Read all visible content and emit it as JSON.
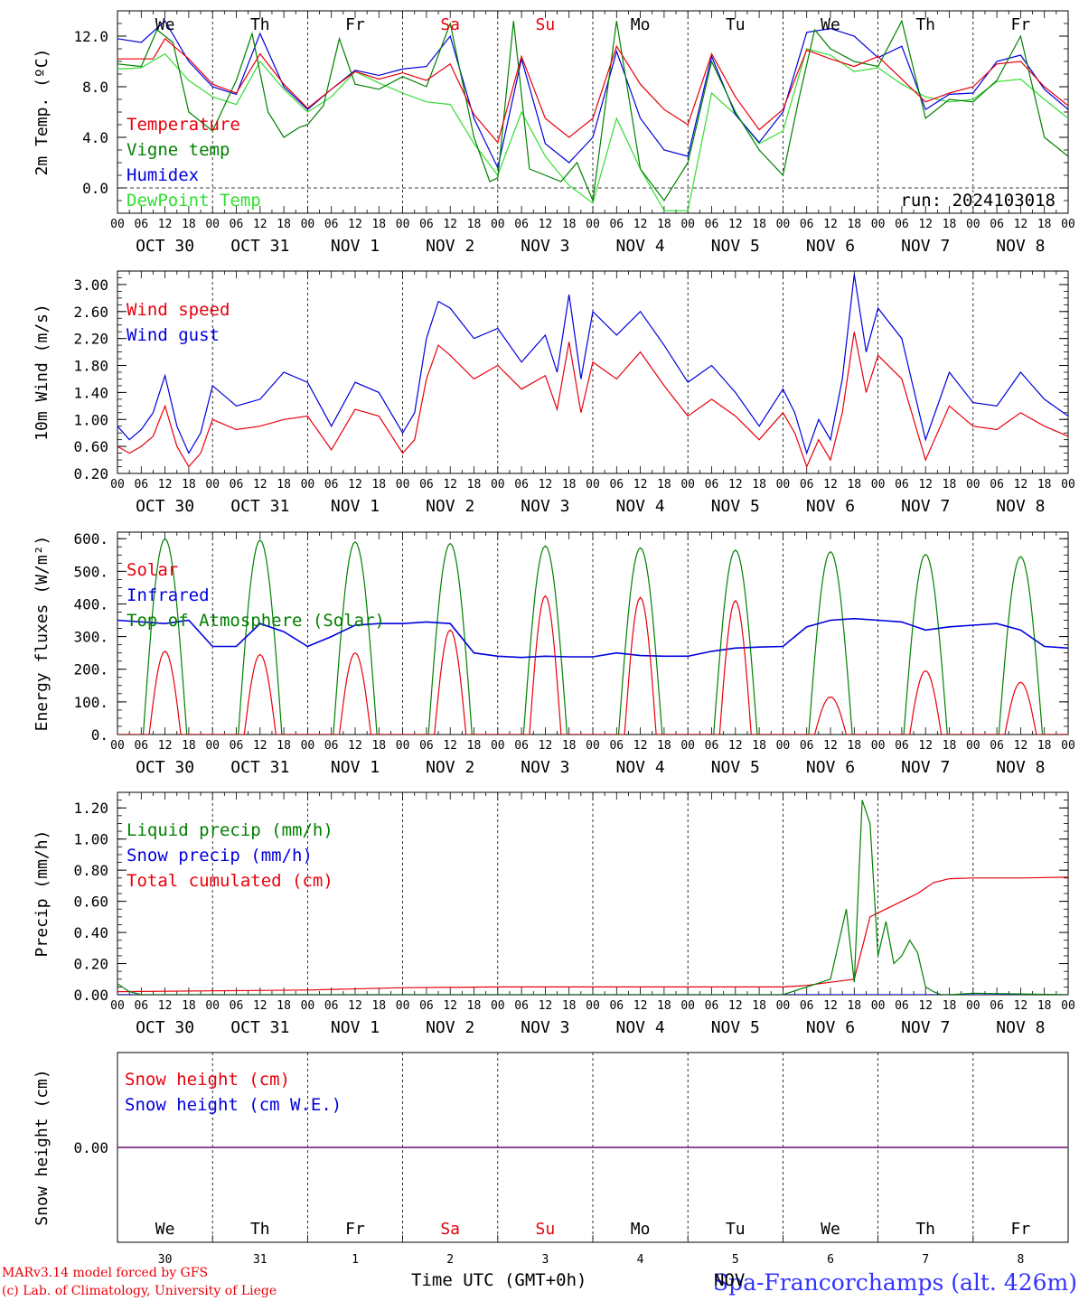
{
  "run_label": "run: 2024103018",
  "days": [
    "We",
    "Th",
    "Fr",
    "Sa",
    "Su",
    "Mo",
    "Tu",
    "We",
    "Th",
    "Fr"
  ],
  "weekend_color": "#e8000b",
  "dates": [
    "OCT 30",
    "OCT 31",
    "NOV  1",
    "NOV  2",
    "NOV  3",
    "NOV  4",
    "NOV  5",
    "NOV  6",
    "NOV  7",
    "NOV  8"
  ],
  "day_numbers": [
    "30",
    "31",
    "1",
    "2",
    "3",
    "4",
    "5",
    "6",
    "7",
    "8"
  ],
  "hour_ticks": [
    "00",
    "06",
    "12",
    "18"
  ],
  "end_tick": "00",
  "x_axis_label": "Time UTC (GMT+0h)",
  "station": "Spa-Francorchamps (alt. 426m)",
  "overlap_text": "NOV",
  "footer": {
    "line1": "MARv3.14 model forced by GFS",
    "line2": "(c) Lab. of Climatology, University of Liege"
  },
  "chart_data": [
    {
      "type": "line",
      "ylabel": "2m Temp. (ºC)",
      "ylim": [
        -2.0,
        14.0
      ],
      "yticks": [
        "12.0",
        "8.0",
        "4.0",
        "0.0"
      ],
      "ytick_values": [
        12,
        8,
        4,
        0
      ],
      "x_hours": [
        0,
        24,
        48,
        72,
        96,
        120,
        144,
        168,
        192,
        216,
        240
      ],
      "series": [
        {
          "name": "Temperature",
          "color": "#e8000b",
          "x": [
            0,
            9,
            12,
            18,
            24,
            30,
            36,
            42,
            48,
            54,
            60,
            66,
            72,
            78,
            84,
            90,
            96,
            102,
            108,
            114,
            120,
            126,
            132,
            138,
            144,
            150,
            156,
            162,
            168,
            174,
            180,
            186,
            192,
            198,
            204,
            210,
            216,
            222,
            228,
            234,
            240
          ],
          "values": [
            10.2,
            10.2,
            11.8,
            10.2,
            8.2,
            7.5,
            10.6,
            8.2,
            6.3,
            7.8,
            9.2,
            8.6,
            9.1,
            8.5,
            9.8,
            5.8,
            3.6,
            10.4,
            5.5,
            4.0,
            5.5,
            11.2,
            8.2,
            6.2,
            5.0,
            10.6,
            7.2,
            4.6,
            6.2,
            10.9,
            10.2,
            9.6,
            10.4,
            8.6,
            6.8,
            7.5,
            8.0,
            9.8,
            10.0,
            8.0,
            6.5
          ]
        },
        {
          "name": "Vigne temp",
          "color": "#008000",
          "x": [
            0,
            6,
            10,
            14,
            18,
            24,
            30,
            34,
            38,
            42,
            46,
            48,
            52,
            56,
            60,
            66,
            72,
            78,
            84,
            90,
            94,
            96,
            100,
            104,
            108,
            112,
            116,
            120,
            126,
            132,
            138,
            144,
            150,
            156,
            162,
            168,
            172,
            176,
            180,
            186,
            192,
            198,
            204,
            210,
            216,
            222,
            228,
            234,
            240
          ],
          "values": [
            9.8,
            9.6,
            12.5,
            11.5,
            6.0,
            4.5,
            8.5,
            12.2,
            6.0,
            4.0,
            4.8,
            5.0,
            6.5,
            11.8,
            8.2,
            7.8,
            8.8,
            8.0,
            13.0,
            4.0,
            0.5,
            0.8,
            13.2,
            1.5,
            1.0,
            0.5,
            2.0,
            -1.0,
            13.2,
            1.5,
            -1.0,
            2.0,
            10.0,
            6.0,
            3.0,
            1.0,
            7.0,
            12.5,
            11.0,
            10.0,
            9.6,
            13.2,
            5.5,
            7.0,
            6.8,
            8.5,
            12.0,
            4.0,
            2.5
          ]
        },
        {
          "name": "Humidex",
          "color": "#0000dd",
          "x": [
            0,
            6,
            12,
            18,
            24,
            30,
            36,
            42,
            48,
            54,
            60,
            66,
            72,
            78,
            84,
            90,
            96,
            102,
            108,
            114,
            120,
            126,
            132,
            138,
            144,
            150,
            156,
            162,
            168,
            174,
            180,
            186,
            192,
            198,
            204,
            210,
            216,
            222,
            228,
            234,
            240
          ],
          "values": [
            11.8,
            11.5,
            13.2,
            10.0,
            8.0,
            7.4,
            12.2,
            8.0,
            6.2,
            7.8,
            9.3,
            8.9,
            9.4,
            9.6,
            12.0,
            5.5,
            1.6,
            10.2,
            3.5,
            2.0,
            4.0,
            10.8,
            5.5,
            3.0,
            2.5,
            10.4,
            5.8,
            3.6,
            6.0,
            12.3,
            12.6,
            12.0,
            10.3,
            11.2,
            6.2,
            7.4,
            7.5,
            10.0,
            10.5,
            7.8,
            6.2
          ]
        },
        {
          "name": "DewPoint Temp",
          "color": "#33dd33",
          "x": [
            0,
            6,
            12,
            18,
            24,
            30,
            36,
            42,
            48,
            54,
            60,
            66,
            72,
            78,
            84,
            90,
            96,
            102,
            108,
            114,
            120,
            126,
            132,
            138,
            144,
            150,
            156,
            162,
            168,
            174,
            180,
            186,
            192,
            198,
            204,
            210,
            216,
            222,
            228,
            234,
            240
          ],
          "values": [
            9.4,
            9.5,
            10.6,
            8.5,
            7.2,
            6.6,
            10.0,
            7.8,
            6.0,
            7.2,
            9.2,
            8.3,
            7.5,
            6.8,
            6.6,
            3.5,
            1.0,
            6.0,
            2.5,
            0.2,
            -1.2,
            5.5,
            1.5,
            -1.8,
            -1.8,
            7.5,
            5.8,
            3.5,
            4.5,
            11.0,
            10.5,
            9.2,
            9.5,
            8.2,
            7.2,
            6.8,
            7.0,
            8.4,
            8.6,
            7.0,
            5.5
          ]
        }
      ]
    },
    {
      "type": "line",
      "ylabel": "10m Wind (m/s)",
      "ylim": [
        0.2,
        3.2
      ],
      "yticks": [
        "3.00",
        "2.60",
        "2.20",
        "1.80",
        "1.40",
        "1.00",
        "0.60",
        "0.20"
      ],
      "ytick_values": [
        3.0,
        2.6,
        2.2,
        1.8,
        1.4,
        1.0,
        0.6,
        0.2
      ],
      "series": [
        {
          "name": "Wind speed",
          "color": "#e8000b",
          "x": [
            0,
            3,
            6,
            9,
            12,
            15,
            18,
            21,
            24,
            30,
            36,
            42,
            48,
            54,
            60,
            66,
            72,
            75,
            78,
            81,
            84,
            90,
            96,
            102,
            108,
            111,
            114,
            117,
            120,
            126,
            132,
            138,
            144,
            150,
            156,
            162,
            168,
            171,
            174,
            177,
            180,
            183,
            186,
            189,
            192,
            198,
            204,
            210,
            216,
            222,
            228,
            234,
            240
          ],
          "values": [
            0.6,
            0.5,
            0.6,
            0.75,
            1.2,
            0.6,
            0.3,
            0.5,
            1.0,
            0.85,
            0.9,
            1.0,
            1.05,
            0.55,
            1.15,
            1.05,
            0.5,
            0.7,
            1.6,
            2.1,
            1.95,
            1.6,
            1.8,
            1.45,
            1.65,
            1.15,
            2.15,
            1.1,
            1.85,
            1.6,
            2.0,
            1.5,
            1.05,
            1.3,
            1.05,
            0.7,
            1.1,
            0.8,
            0.3,
            0.7,
            0.4,
            1.1,
            2.3,
            1.4,
            1.95,
            1.6,
            0.4,
            1.2,
            0.9,
            0.85,
            1.1,
            0.9,
            0.75
          ]
        },
        {
          "name": "Wind gust",
          "color": "#0000dd",
          "x": [
            0,
            3,
            6,
            9,
            12,
            15,
            18,
            21,
            24,
            30,
            36,
            42,
            48,
            54,
            60,
            66,
            72,
            75,
            78,
            81,
            84,
            90,
            96,
            102,
            108,
            111,
            114,
            117,
            120,
            126,
            132,
            138,
            144,
            150,
            156,
            162,
            168,
            171,
            174,
            177,
            180,
            183,
            186,
            189,
            192,
            198,
            204,
            210,
            216,
            222,
            228,
            234,
            240
          ],
          "values": [
            0.9,
            0.7,
            0.85,
            1.1,
            1.65,
            0.9,
            0.5,
            0.8,
            1.5,
            1.2,
            1.3,
            1.7,
            1.55,
            0.9,
            1.55,
            1.4,
            0.8,
            1.1,
            2.2,
            2.75,
            2.65,
            2.2,
            2.35,
            1.85,
            2.25,
            1.7,
            2.85,
            1.6,
            2.6,
            2.25,
            2.6,
            2.1,
            1.55,
            1.8,
            1.4,
            0.9,
            1.45,
            1.1,
            0.5,
            1.0,
            0.7,
            1.6,
            3.15,
            2.0,
            2.65,
            2.2,
            0.7,
            1.7,
            1.25,
            1.2,
            1.7,
            1.3,
            1.05
          ]
        }
      ]
    },
    {
      "type": "line",
      "ylabel": "Energy fluxes (W/m²)",
      "ylim": [
        0,
        620
      ],
      "yticks": [
        "600.",
        "500.",
        "400.",
        "300.",
        "200.",
        "100.",
        "0."
      ],
      "ytick_values": [
        600,
        500,
        400,
        300,
        200,
        100,
        0
      ],
      "series": [
        {
          "name": "Solar",
          "color": "#e8000b",
          "peaks": [
            255,
            245,
            250,
            320,
            425,
            420,
            410,
            115,
            195,
            160
          ]
        },
        {
          "name": "Infrared",
          "color": "#0000dd",
          "x": [
            0,
            12,
            18,
            24,
            30,
            36,
            42,
            48,
            54,
            60,
            66,
            72,
            78,
            84,
            90,
            96,
            102,
            108,
            114,
            120,
            126,
            132,
            138,
            144,
            150,
            156,
            162,
            168,
            174,
            180,
            186,
            192,
            198,
            204,
            210,
            216,
            222,
            228,
            234,
            240
          ],
          "values": [
            350,
            340,
            350,
            270,
            270,
            340,
            315,
            270,
            300,
            335,
            340,
            340,
            345,
            340,
            250,
            240,
            236,
            240,
            238,
            238,
            250,
            242,
            240,
            240,
            255,
            265,
            268,
            270,
            330,
            350,
            355,
            350,
            345,
            320,
            330,
            335,
            340,
            320,
            270,
            265
          ]
        },
        {
          "name": "Top of Atmosphere (Solar)",
          "color": "#008000",
          "peaks": [
            600,
            595,
            590,
            585,
            578,
            572,
            565,
            560,
            552,
            545
          ]
        }
      ]
    },
    {
      "type": "line",
      "ylabel": "Precip (mm/h)",
      "ylim": [
        0,
        1.3
      ],
      "yticks": [
        "1.20",
        "1.00",
        "0.80",
        "0.60",
        "0.40",
        "0.20",
        "0.00"
      ],
      "ytick_values": [
        1.2,
        1.0,
        0.8,
        0.6,
        0.4,
        0.2,
        0.0
      ],
      "series": [
        {
          "name": "Liquid precip (mm/h)",
          "color": "#008000",
          "x": [
            0,
            3,
            6,
            24,
            60,
            120,
            168,
            174,
            180,
            184,
            186,
            188,
            190,
            192,
            194,
            196,
            198,
            200,
            202,
            204,
            206,
            208,
            210,
            216,
            240
          ],
          "values": [
            0.07,
            0.02,
            0.0,
            0.0,
            0.0,
            0.0,
            0.0,
            0.05,
            0.1,
            0.55,
            0.08,
            1.25,
            1.1,
            0.25,
            0.47,
            0.2,
            0.25,
            0.35,
            0.27,
            0.05,
            0.02,
            0.0,
            0.0,
            0.01,
            0.0
          ]
        },
        {
          "name": "Snow precip (mm/h)",
          "color": "#0000dd",
          "x": [
            0,
            240
          ],
          "values": [
            0.0,
            0.0
          ]
        },
        {
          "name": "Total cumulated (cm)",
          "color": "#e8000b",
          "x": [
            0,
            24,
            48,
            72,
            96,
            120,
            144,
            168,
            174,
            180,
            186,
            190,
            194,
            198,
            202,
            206,
            210,
            216,
            228,
            240
          ],
          "values": [
            0.02,
            0.025,
            0.03,
            0.045,
            0.05,
            0.05,
            0.05,
            0.05,
            0.06,
            0.08,
            0.1,
            0.5,
            0.55,
            0.6,
            0.65,
            0.72,
            0.745,
            0.75,
            0.75,
            0.755
          ]
        }
      ]
    },
    {
      "type": "line",
      "ylabel": "Snow height (cm)",
      "ylim": [
        -1,
        1
      ],
      "yticks": [
        "0.00"
      ],
      "ytick_values": [
        0
      ],
      "series": [
        {
          "name": "Snow height (cm)",
          "color": "#e8000b",
          "x": [
            0,
            240
          ],
          "values": [
            0,
            0
          ]
        },
        {
          "name": "Snow height (cm W.E.)",
          "color": "#0000dd",
          "x": [
            0,
            240
          ],
          "values": [
            0,
            0
          ]
        }
      ]
    }
  ]
}
